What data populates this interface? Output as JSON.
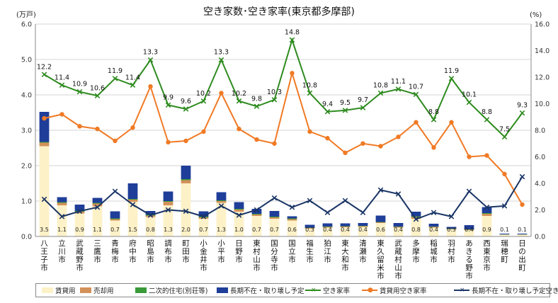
{
  "chart_data": {
    "type": "bar",
    "title": "空き家数･空き家率(東京都多摩部)",
    "y_left_unit": "(万戸)",
    "y_right_unit": "(%)",
    "ylim_left": [
      0,
      6
    ],
    "ylim_right": [
      0,
      16
    ],
    "y_left_ticks": [
      "0.0",
      "1.0",
      "2.0",
      "3.0",
      "4.0",
      "5.0",
      "6.0"
    ],
    "y_right_ticks": [
      "0.0",
      "2.0",
      "4.0",
      "6.0",
      "8.0",
      "10.0",
      "12.0",
      "14.0",
      "16.0"
    ],
    "categories": [
      "八王子市",
      "立川市",
      "武蔵野市",
      "三鷹市",
      "青梅市",
      "府中市",
      "昭島市",
      "調布市",
      "町田市",
      "小金井市",
      "小平市",
      "日野市",
      "東村山市",
      "国分寺市",
      "国立市",
      "福生市",
      "狛江市",
      "東大和市",
      "清瀬市",
      "東久留米市",
      "武蔵村山市",
      "多摩市",
      "稲城市",
      "羽村市",
      "あきる野市",
      "西東京市",
      "瑞穂町",
      "日の出町"
    ],
    "series": [
      {
        "name": "賃貸用",
        "kind": "bar",
        "color": "#fdf1c8",
        "values": [
          2.55,
          0.88,
          0.65,
          0.85,
          0.45,
          0.98,
          0.55,
          0.88,
          1.5,
          0.5,
          0.95,
          0.7,
          0.58,
          0.5,
          0.45,
          0.22,
          0.25,
          0.26,
          0.27,
          0.38,
          0.25,
          0.5,
          0.25,
          0.2,
          0.18,
          0.58,
          0.05,
          0.05
        ]
      },
      {
        "name": "売却用",
        "kind": "bar",
        "color": "#d3915a",
        "values": [
          0.1,
          0.07,
          0.05,
          0.08,
          0.04,
          0.06,
          0.04,
          0.1,
          0.09,
          0.04,
          0.05,
          0.06,
          0.04,
          0.04,
          0.04,
          0.02,
          0.02,
          0.02,
          0.02,
          0.02,
          0.02,
          0.05,
          0.02,
          0.01,
          0.01,
          0.06,
          0.005,
          0.005
        ]
      },
      {
        "name": "二次的住宅(別荘等)",
        "kind": "bar",
        "color": "#3a9a3a",
        "values": [
          0.02,
          0.02,
          0.02,
          0.02,
          0.02,
          0.02,
          0.02,
          0.02,
          0.03,
          0.02,
          0.02,
          0.02,
          0.02,
          0.02,
          0.02,
          0.01,
          0.01,
          0.01,
          0.01,
          0.01,
          0.01,
          0.02,
          0.01,
          0.01,
          0.01,
          0.02,
          0.005,
          0.005
        ]
      },
      {
        "name": "長期不在・取り壊し予定",
        "kind": "bar",
        "color": "#1f3e99",
        "values": [
          0.85,
          0.14,
          0.18,
          0.14,
          0.2,
          0.44,
          0.11,
          0.27,
          0.38,
          0.15,
          0.23,
          0.19,
          0.14,
          0.16,
          0.06,
          0.08,
          0.09,
          0.08,
          0.08,
          0.18,
          0.1,
          0.13,
          0.08,
          0.05,
          0.12,
          0.17,
          0.02,
          0.02
        ]
      },
      {
        "name": "空き家率",
        "kind": "line",
        "axis": "right",
        "color": "#2e8b1f",
        "marker": "×",
        "values": [
          12.2,
          11.4,
          10.9,
          10.6,
          11.9,
          11.4,
          13.3,
          9.9,
          9.6,
          10.2,
          13.3,
          10.2,
          9.8,
          10.3,
          14.8,
          10.8,
          9.4,
          9.5,
          9.7,
          10.8,
          11.1,
          10.7,
          8.8,
          11.9,
          10.1,
          8.8,
          7.5,
          9.3
        ]
      },
      {
        "name": "賃貸用空き家率",
        "kind": "line",
        "axis": "right",
        "color": "#f07a25",
        "marker": "●",
        "values": [
          8.9,
          9.2,
          8.3,
          8.1,
          7.2,
          8.2,
          11.3,
          7.1,
          7.2,
          7.9,
          10.8,
          8.1,
          7.3,
          7.0,
          12.3,
          7.9,
          7.4,
          6.3,
          7.0,
          6.8,
          7.5,
          8.6,
          6.7,
          8.6,
          6.0,
          6.1,
          4.7,
          2.4
        ]
      },
      {
        "name": "長期不在・取り壊し予定空き家率",
        "kind": "line",
        "axis": "right",
        "color": "#1a3566",
        "marker": "×",
        "values": [
          2.8,
          1.5,
          1.9,
          2.2,
          3.4,
          2.4,
          1.6,
          2.0,
          1.9,
          1.5,
          2.3,
          1.6,
          2.0,
          2.9,
          2.2,
          2.7,
          1.8,
          2.7,
          1.8,
          3.5,
          3.2,
          1.3,
          1.8,
          1.5,
          3.4,
          2.2,
          2.3,
          4.5
        ]
      }
    ],
    "bar_total_labels": [
      "3.5",
      "1.1",
      "0.9",
      "1.1",
      "0.7",
      "1.5",
      "0.8",
      "1.3",
      "2.0",
      "0.7",
      "1.3",
      "1.0",
      "0.7",
      "0.7",
      "0.6",
      "0.3",
      "0.4",
      "0.4",
      "0.4",
      "0.6",
      "0.4",
      "0.8",
      "0.4",
      "0.3",
      "0.4",
      "0.9",
      "0.1",
      "0.1"
    ],
    "rate_labels": [
      "12.2",
      "11.4",
      "10.9",
      "10.6",
      "11.9",
      "11.4",
      "13.3",
      "9.9",
      "9.6",
      "10.2",
      "13.3",
      "10.2",
      "9.8",
      "10.3",
      "14.8",
      "10.8",
      "9.4",
      "9.5",
      "9.7",
      "10.8",
      "11.1",
      "10.7",
      "8.8",
      "11.9",
      "10.1",
      "8.8",
      "7.5",
      "9.3"
    ],
    "grid": true,
    "legend": "bottom"
  }
}
